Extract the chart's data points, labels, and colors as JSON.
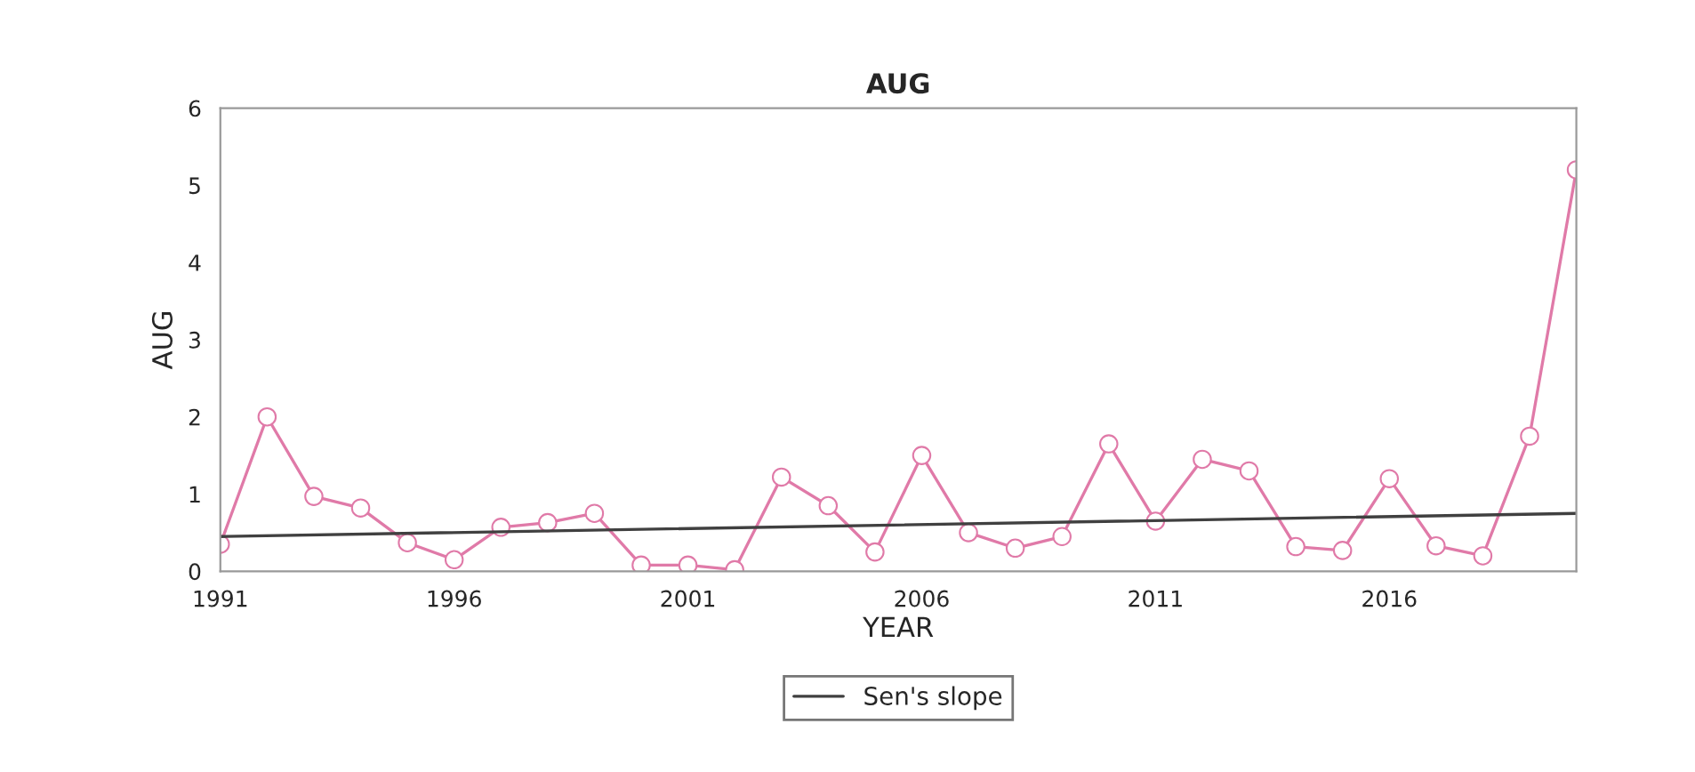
{
  "chart_data": {
    "type": "line",
    "title": "AUG",
    "xlabel": "YEAR",
    "ylabel": "AUG",
    "x": [
      1991,
      1992,
      1993,
      1994,
      1995,
      1996,
      1997,
      1998,
      1999,
      2000,
      2001,
      2002,
      2003,
      2004,
      2005,
      2006,
      2007,
      2008,
      2009,
      2010,
      2011,
      2012,
      2013,
      2014,
      2015,
      2016,
      2017,
      2018,
      2019,
      2020
    ],
    "series": [
      {
        "color": "#e07aa8",
        "marker": "circle",
        "values": [
          0.35,
          2.0,
          0.97,
          0.82,
          0.37,
          0.15,
          0.57,
          0.63,
          0.75,
          0.08,
          0.08,
          0.02,
          1.22,
          0.85,
          0.25,
          1.5,
          0.5,
          0.3,
          0.45,
          1.65,
          0.65,
          1.45,
          1.3,
          0.32,
          0.27,
          1.2,
          0.33,
          0.2,
          1.75,
          5.2
        ]
      },
      {
        "name": "Sen's slope",
        "color": "#404040",
        "marker": "none",
        "x": [
          1991,
          2020
        ],
        "values": [
          0.45,
          0.75
        ]
      }
    ],
    "xlim": [
      1991,
      2020
    ],
    "xticks": [
      1991,
      1996,
      2001,
      2006,
      2011,
      2016
    ],
    "ylim": [
      0,
      6
    ],
    "yticks": [
      0,
      1,
      2,
      3,
      4,
      5,
      6
    ],
    "grid": false,
    "legend": "bottom"
  }
}
